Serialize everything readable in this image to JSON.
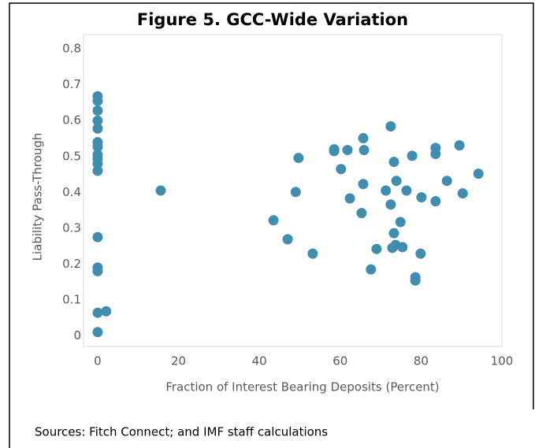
{
  "chart_data": {
    "type": "scatter",
    "title": "Figure 5. GCC-Wide Variation",
    "x_label": "Fraction of Interest Bearing Deposits (Percent)",
    "y_label": "Liability Pass-Through",
    "source": "Sources: Fitch Connect; and IMF staff calculations",
    "color": "#3f8db0",
    "xlim": [
      -3.5,
      100
    ],
    "xticks": [
      0,
      20,
      40,
      60,
      80,
      100
    ],
    "ylim": [
      -0.03,
      0.84
    ],
    "yticks": [
      0,
      0.1,
      0.2,
      0.3,
      0.4,
      0.5,
      0.6,
      0.7,
      0.8
    ],
    "grid": false,
    "x": [
      0,
      0,
      0,
      0,
      0,
      0,
      0,
      0,
      0,
      0,
      0,
      0,
      0,
      0,
      0,
      0,
      2.1,
      15.6,
      43.5,
      47,
      49,
      49.7,
      53.2,
      58.5,
      58.5,
      60.2,
      61.8,
      62.4,
      65.7,
      65.9,
      65.7,
      65.3,
      67.6,
      69,
      71.3,
      72.5,
      72.5,
      73.3,
      73.9,
      73.3,
      72.9,
      73.7,
      74.9,
      75.4,
      76.4,
      77.8,
      78.6,
      78.6,
      79.9,
      80.1,
      83.6,
      83.6,
      83.6,
      86.4,
      89.5,
      90.3,
      94.2
    ],
    "values": [
      0.668,
      0.655,
      0.628,
      0.6,
      0.578,
      0.54,
      0.527,
      0.505,
      0.494,
      0.48,
      0.46,
      0.275,
      0.19,
      0.18,
      0.064,
      0.01,
      0.068,
      0.405,
      0.322,
      0.269,
      0.401,
      0.496,
      0.229,
      0.52,
      0.515,
      0.465,
      0.518,
      0.383,
      0.551,
      0.518,
      0.423,
      0.342,
      0.185,
      0.242,
      0.405,
      0.584,
      0.366,
      0.485,
      0.432,
      0.286,
      0.245,
      0.253,
      0.317,
      0.247,
      0.405,
      0.502,
      0.163,
      0.154,
      0.229,
      0.386,
      0.524,
      0.507,
      0.375,
      0.432,
      0.531,
      0.397,
      0.452
    ]
  }
}
